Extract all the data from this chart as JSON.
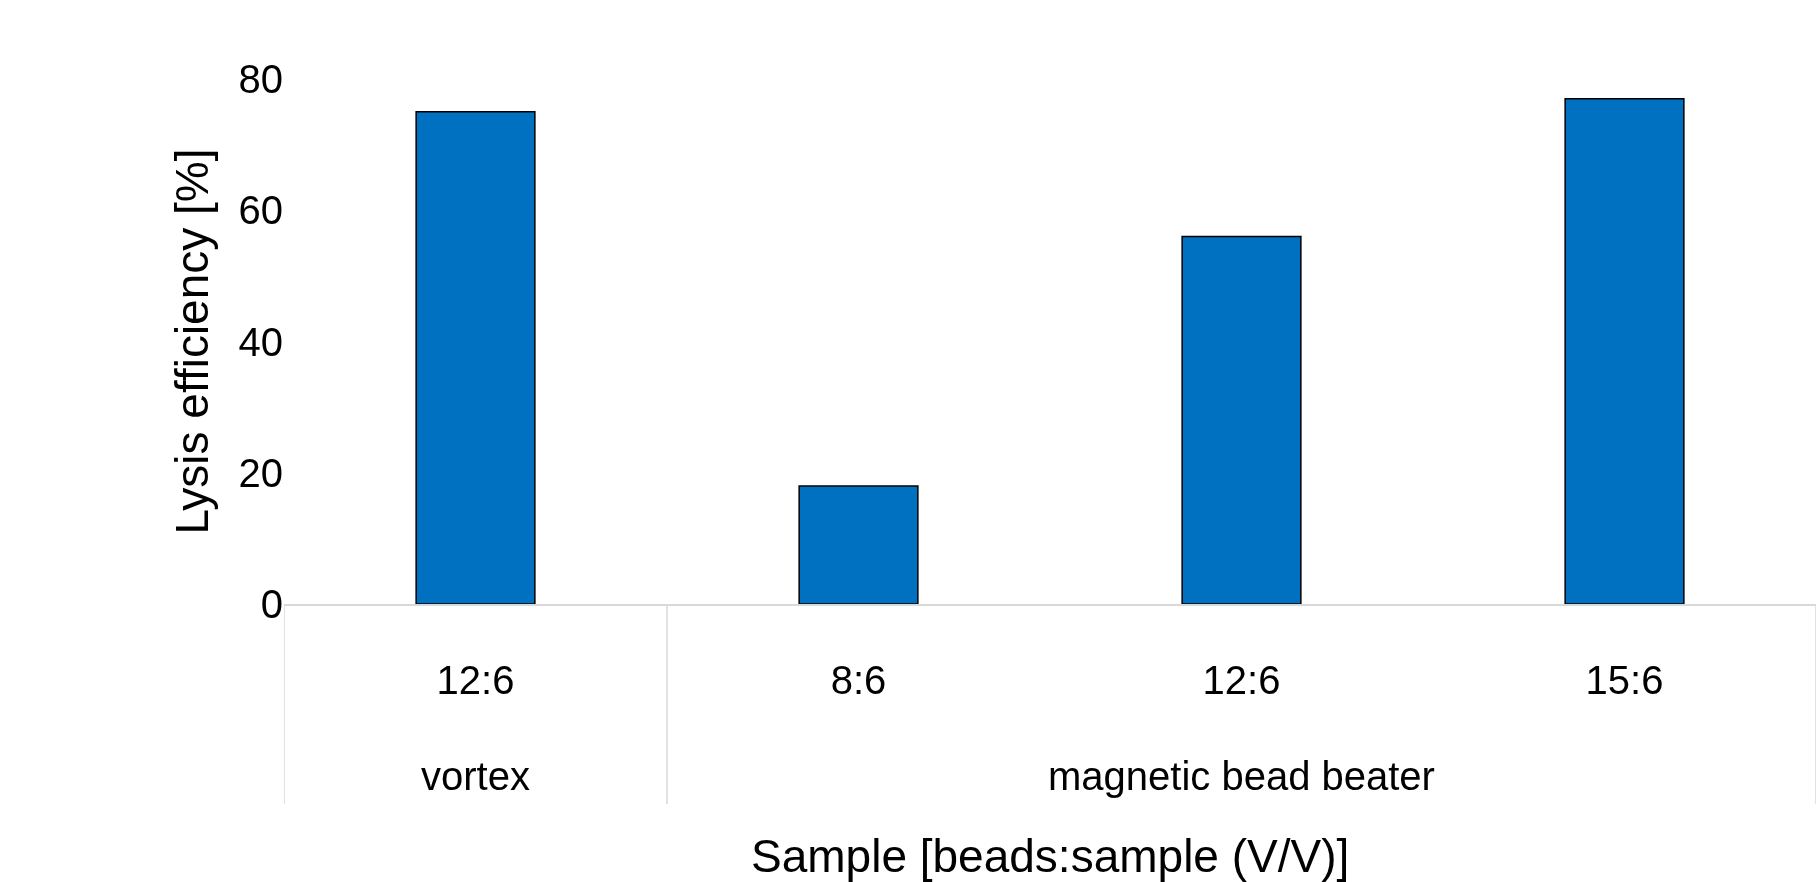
{
  "chart_data": {
    "type": "bar",
    "categories": [
      "12:6",
      "8:6",
      "12:6",
      "15:6"
    ],
    "values": [
      75,
      18,
      56,
      77
    ],
    "color": "#0070c0",
    "xlabel": "Sample [beads:sample (V/V)]",
    "ylabel": "Lysis efficiency [%]",
    "ylim": [
      0,
      80
    ],
    "yticks": [
      0,
      20,
      40,
      60,
      80
    ],
    "annotations": [
      "vortex",
      "magnetic bead beater"
    ]
  }
}
